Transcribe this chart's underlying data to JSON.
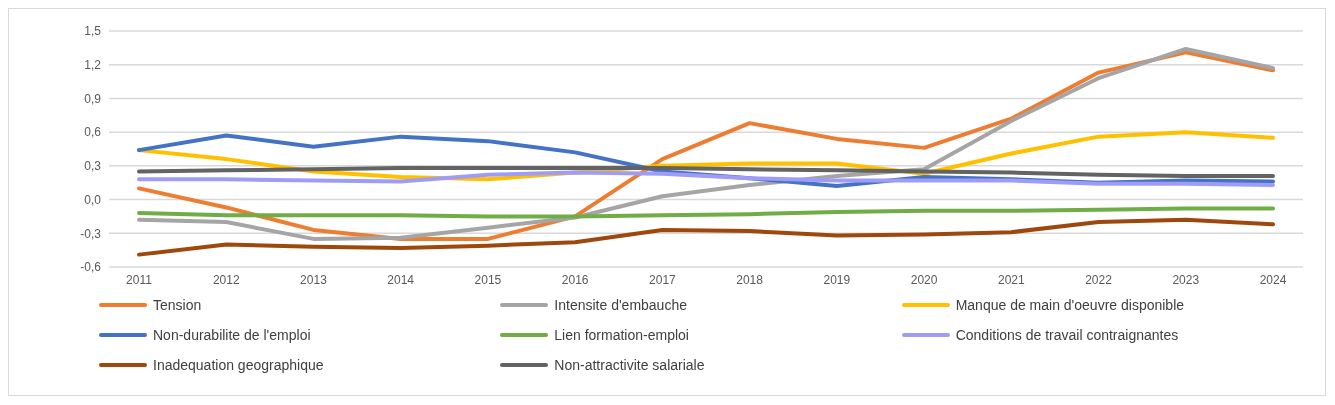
{
  "chart_data": {
    "type": "line",
    "categories": [
      "2011",
      "2012",
      "2013",
      "2014",
      "2015",
      "2016",
      "2017",
      "2018",
      "2019",
      "2020",
      "2021",
      "2022",
      "2023",
      "2024"
    ],
    "ylim": [
      -0.6,
      1.5
    ],
    "yticks": [
      {
        "value": -0.6,
        "label": "-0,6"
      },
      {
        "value": -0.3,
        "label": "-0,3"
      },
      {
        "value": 0,
        "label": "0,0"
      },
      {
        "value": 0.3,
        "label": "0,3"
      },
      {
        "value": 0.6,
        "label": "0,6"
      },
      {
        "value": 0.9,
        "label": "0,9"
      },
      {
        "value": 1.2,
        "label": "1,2"
      },
      {
        "value": 1.5,
        "label": "1,5"
      }
    ],
    "grid": "y",
    "legend": "bottom",
    "marker": "none",
    "line_style": "solid",
    "series": [
      {
        "name": "Tension",
        "color": "#ed7d31",
        "values": [
          0.1,
          -0.07,
          -0.27,
          -0.35,
          -0.35,
          -0.15,
          0.36,
          0.68,
          0.54,
          0.46,
          0.72,
          1.13,
          1.31,
          1.15
        ]
      },
      {
        "name": "Intensite d'embauche",
        "color": "#a5a5a5",
        "values": [
          -0.18,
          -0.2,
          -0.35,
          -0.34,
          -0.25,
          -0.16,
          0.03,
          0.13,
          0.21,
          0.27,
          0.7,
          1.08,
          1.34,
          1.17
        ]
      },
      {
        "name": "Manque de main d'oeuvre disponible",
        "color": "#ffc000",
        "values": [
          0.44,
          0.36,
          0.25,
          0.2,
          0.18,
          0.24,
          0.3,
          0.32,
          0.32,
          0.23,
          0.41,
          0.56,
          0.6,
          0.55
        ]
      },
      {
        "name": "Non-durabilite de l'emploi",
        "color": "#4472c4",
        "values": [
          0.44,
          0.57,
          0.47,
          0.56,
          0.52,
          0.42,
          0.25,
          0.19,
          0.12,
          0.2,
          0.18,
          0.15,
          0.17,
          0.16
        ]
      },
      {
        "name": "Lien formation-emploi",
        "color": "#70ad47",
        "values": [
          -0.12,
          -0.14,
          -0.14,
          -0.14,
          -0.15,
          -0.15,
          -0.14,
          -0.13,
          -0.11,
          -0.1,
          -0.1,
          -0.09,
          -0.08,
          -0.08
        ]
      },
      {
        "name": "Conditions de travail contraignantes",
        "color": "#9e9cf7",
        "values": [
          0.18,
          0.18,
          0.17,
          0.16,
          0.22,
          0.24,
          0.23,
          0.19,
          0.17,
          0.17,
          0.17,
          0.14,
          0.14,
          0.13
        ]
      },
      {
        "name": "Inadequation geographique",
        "color": "#9e480e",
        "values": [
          -0.49,
          -0.4,
          -0.42,
          -0.43,
          -0.41,
          -0.38,
          -0.27,
          -0.28,
          -0.32,
          -0.31,
          -0.29,
          -0.2,
          -0.18,
          -0.22
        ]
      },
      {
        "name": "Non-attractivite salariale",
        "color": "#636363",
        "values": [
          0.25,
          0.26,
          0.27,
          0.28,
          0.28,
          0.28,
          0.28,
          0.27,
          0.26,
          0.25,
          0.24,
          0.22,
          0.21,
          0.21
        ]
      }
    ]
  }
}
